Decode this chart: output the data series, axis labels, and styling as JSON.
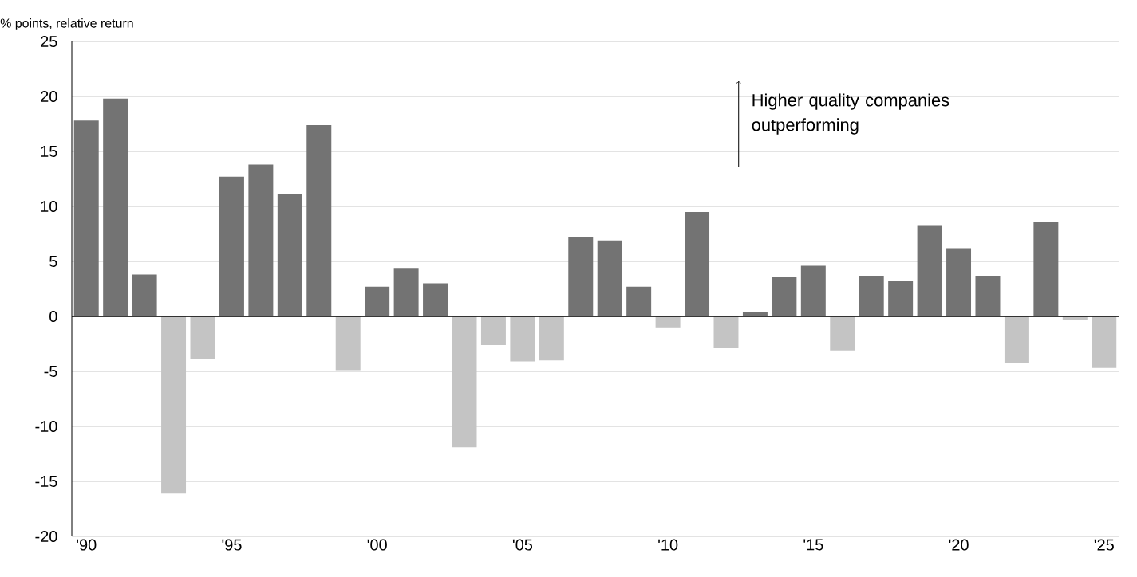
{
  "chart_data": {
    "type": "bar",
    "ylabel": "% points, relative return",
    "categories": [
      "'90",
      null,
      null,
      null,
      null,
      "'95",
      null,
      null,
      null,
      null,
      "'00",
      null,
      null,
      null,
      null,
      "'05",
      null,
      null,
      null,
      null,
      "'10",
      null,
      null,
      null,
      null,
      "'15",
      null,
      null,
      null,
      null,
      "'20",
      null,
      null,
      null,
      null,
      "'25"
    ],
    "values": [
      17.8,
      19.8,
      3.8,
      -16.1,
      -3.9,
      12.7,
      13.8,
      11.1,
      17.4,
      -4.9,
      2.7,
      4.4,
      3.0,
      -11.9,
      -2.6,
      -4.1,
      -4.0,
      7.2,
      6.9,
      2.7,
      -1.0,
      9.5,
      -2.9,
      0.4,
      3.6,
      4.6,
      -3.1,
      3.7,
      3.2,
      8.3,
      6.2,
      3.7,
      -4.2,
      8.6,
      -0.3,
      -4.7
    ],
    "colors": [
      "#737373",
      "#737373",
      "#737373",
      "#c4c4c4",
      "#c4c4c4",
      "#737373",
      "#737373",
      "#737373",
      "#737373",
      "#c4c4c4",
      "#737373",
      "#737373",
      "#737373",
      "#c4c4c4",
      "#c4c4c4",
      "#c4c4c4",
      "#c4c4c4",
      "#737373",
      "#737373",
      "#737373",
      "#c4c4c4",
      "#737373",
      "#c4c4c4",
      "#737373",
      "#737373",
      "#737373",
      "#c4c4c4",
      "#737373",
      "#737373",
      "#737373",
      "#737373",
      "#737373",
      "#c4c4c4",
      "#737373",
      "#c4c4c4",
      "#c4c4c4"
    ],
    "ylim": [
      -20,
      25
    ],
    "yticks": [
      -20,
      -15,
      -10,
      -5,
      0,
      5,
      10,
      15,
      20,
      25
    ],
    "grid": "y",
    "annotations": [
      "Higher quality companies outperforming"
    ]
  }
}
